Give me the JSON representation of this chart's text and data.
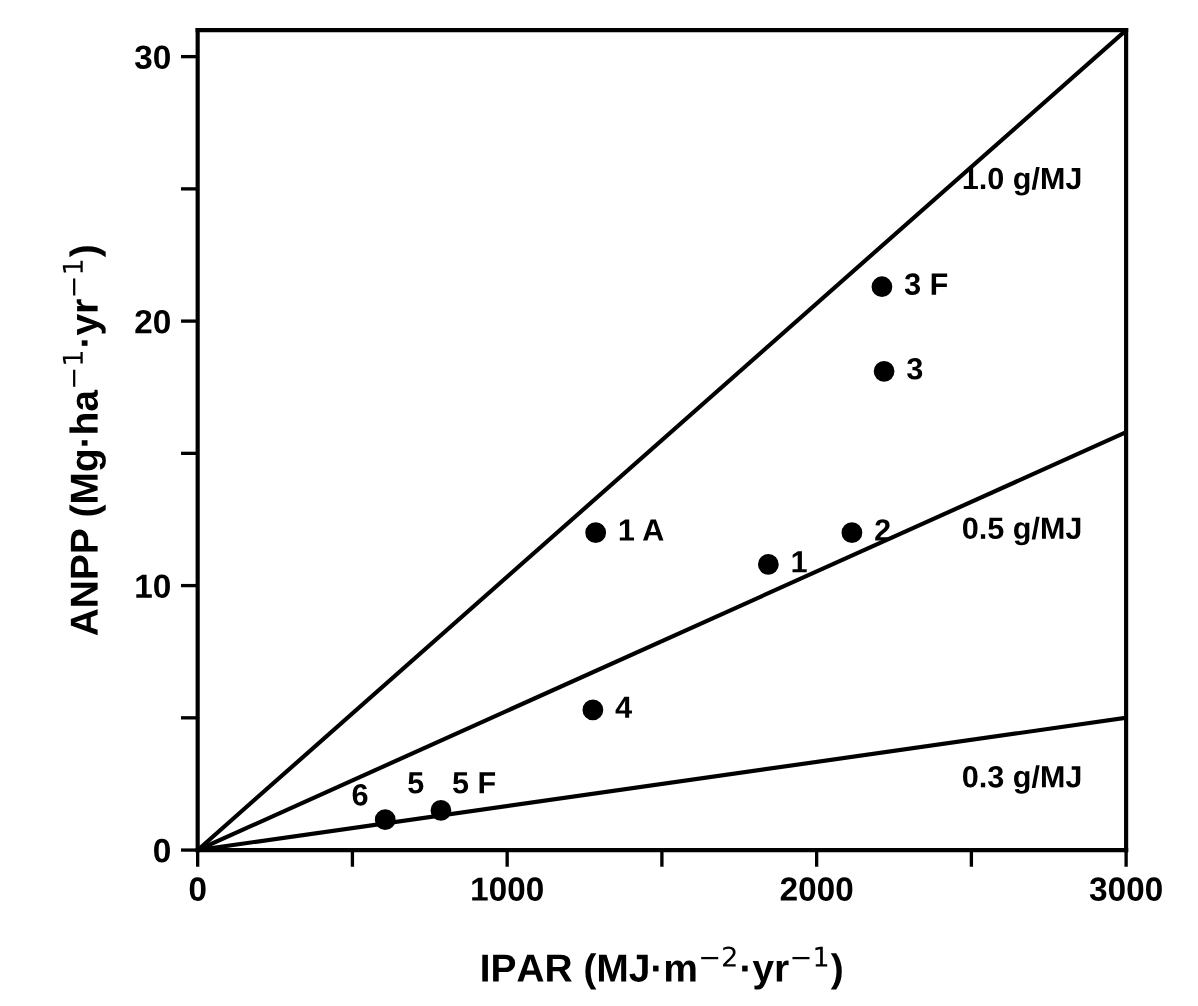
{
  "chart_data": {
    "type": "scatter",
    "xlabel": "IPAR (MJ·m$^{−2}$·yr$^{−1}$)",
    "ylabel": "ANPP (Mg·ha$^{−1}$·yr$^{−1}$)",
    "xlim": [
      0,
      3000
    ],
    "ylim": [
      0,
      31
    ],
    "xticks": [
      0,
      {
        "value": 500,
        "label": null
      },
      1000,
      {
        "value": 1500,
        "label": null
      },
      2000,
      {
        "value": 2500,
        "label": null
      },
      3000
    ],
    "yticks": [
      0,
      {
        "value": 5,
        "label": null
      },
      10,
      {
        "value": 15,
        "label": null
      },
      20,
      {
        "value": 25,
        "label": null
      },
      30
    ],
    "grid": false,
    "legend": false,
    "series": [
      {
        "type": "line",
        "name": "1.0 g/MJ",
        "color": "#000000",
        "marker": "none",
        "line_style": "solid",
        "x": [
          0,
          3000
        ],
        "values": [
          0,
          31
        ]
      },
      {
        "type": "line",
        "name": "0.5 g/MJ",
        "color": "#000000",
        "marker": "none",
        "line_style": "solid",
        "x": [
          0,
          3000
        ],
        "values": [
          0,
          15.8
        ]
      },
      {
        "type": "line",
        "name": "0.3 g/MJ",
        "color": "#000000",
        "marker": "none",
        "line_style": "solid",
        "x": [
          0,
          3000
        ],
        "values": [
          0,
          5.0
        ]
      },
      {
        "color": "#000000",
        "marker": "circle",
        "x": [
          1286,
          1844,
          2114,
          2211,
          2218,
          1277,
          786,
          606
        ],
        "values": [
          12.0,
          10.8,
          12.0,
          21.3,
          18.1,
          5.3,
          1.5,
          1.15
        ]
      }
    ],
    "annotations": [
      {
        "text": "1 A",
        "x": 1286,
        "y": 12.0
      },
      {
        "text": "1",
        "x": 1844,
        "y": 10.8
      },
      {
        "text": "2",
        "x": 2114,
        "y": 12.0
      },
      {
        "text": "3 F",
        "x": 2211,
        "y": 21.3
      },
      {
        "text": "3",
        "x": 2218,
        "y": 18.1
      },
      {
        "text": "4",
        "x": 1277,
        "y": 5.3
      },
      {
        "text": "5 F",
        "x": 786,
        "y": 1.5
      },
      {
        "text": "5",
        "x": 786,
        "y": 1.5
      },
      {
        "text": "6",
        "x": 606,
        "y": 1.15
      }
    ]
  }
}
